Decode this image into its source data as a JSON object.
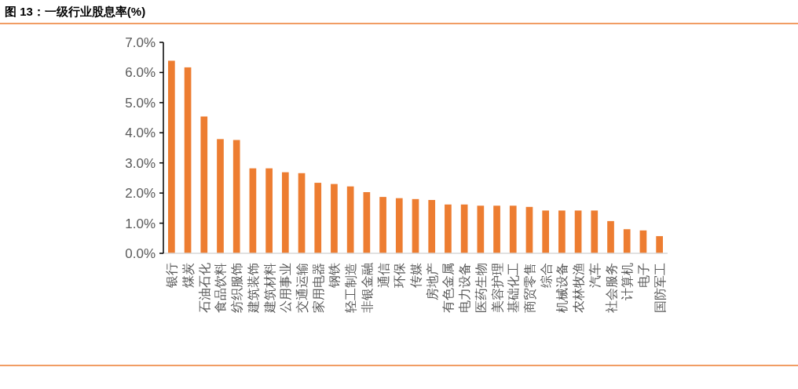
{
  "chart_data": {
    "type": "bar",
    "title": "图 13：一级行业股息率(%)",
    "categories": [
      "银行",
      "煤炭",
      "石油石化",
      "食品饮料",
      "纺织服饰",
      "建筑装饰",
      "建筑材料",
      "公用事业",
      "交通运输",
      "家用电器",
      "钢铁",
      "轻工制造",
      "非银金融",
      "通信",
      "环保",
      "传媒",
      "房地产",
      "有色金属",
      "电力设备",
      "医药生物",
      "美容护理",
      "基础化工",
      "商贸零售",
      "综合",
      "机械设备",
      "农林牧渔",
      "汽车",
      "社会服务",
      "计算机",
      "电子",
      "国防军工"
    ],
    "values": [
      6.39,
      6.17,
      4.54,
      3.79,
      3.76,
      2.82,
      2.82,
      2.69,
      2.66,
      2.34,
      2.3,
      2.22,
      2.03,
      1.87,
      1.83,
      1.8,
      1.77,
      1.62,
      1.62,
      1.58,
      1.58,
      1.58,
      1.54,
      1.42,
      1.42,
      1.42,
      1.42,
      1.07,
      0.8,
      0.76,
      0.57
    ],
    "color": "#ed7d31",
    "ylim": [
      0,
      7
    ],
    "yticks": [
      {
        "value": 0,
        "label": "0.0%"
      },
      {
        "value": 1,
        "label": "1.0%"
      },
      {
        "value": 2,
        "label": "2.0%"
      },
      {
        "value": 3,
        "label": "3.0%"
      },
      {
        "value": 4,
        "label": "4.0%"
      },
      {
        "value": 5,
        "label": "5.0%"
      },
      {
        "value": 6,
        "label": "6.0%"
      },
      {
        "value": 7,
        "label": "7.0%"
      }
    ],
    "grid": false
  }
}
